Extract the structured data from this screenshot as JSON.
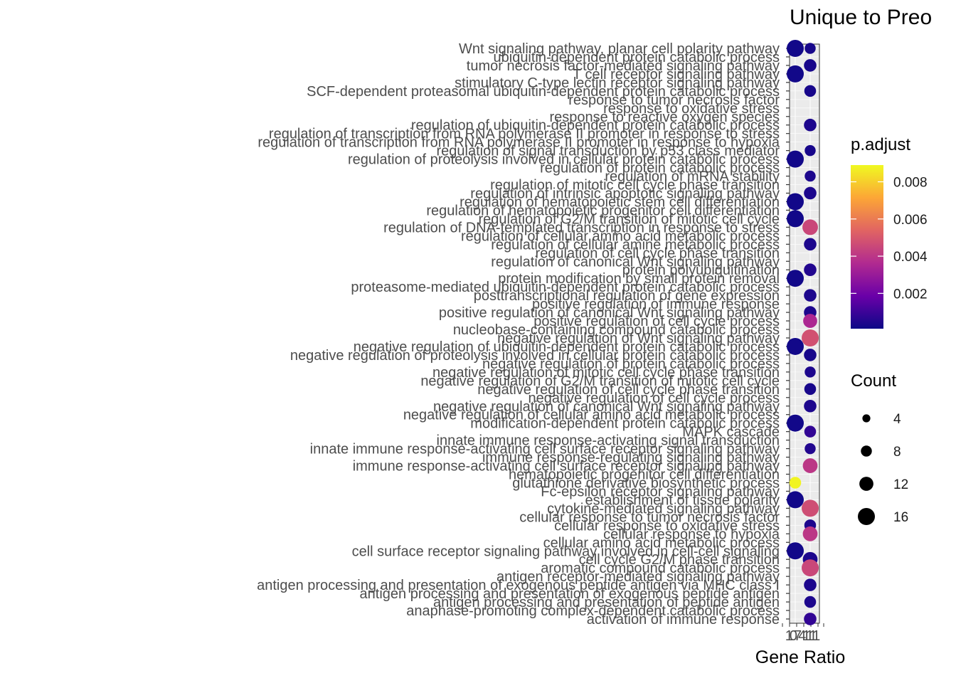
{
  "chart_data": {
    "type": "scatter",
    "title": "Unique to Preo",
    "xlabel": "Gene Ratio",
    "ylabel": "",
    "x_tick_labels": [
      "1",
      "0",
      "7",
      "4",
      "1",
      "1",
      "1"
    ],
    "x_tick_text": "10741111",
    "categories": [
      "Wnt signaling pathway, planar cell polarity pathway",
      "ubiquitin-dependent protein catabolic process",
      "tumor necrosis factor-mediated signaling pathway",
      "T cell receptor signaling pathway",
      "stimulatory C-type lectin receptor signaling pathway",
      "SCF-dependent proteasomal ubiquitin-dependent protein catabolic process",
      "response to tumor necrosis factor",
      "response to oxidative stress",
      "response to reactive oxygen species",
      "regulation of ubiquitin-dependent protein catabolic process",
      "regulation of transcription from RNA polymerase II promoter in response to stress",
      "regulation of transcription from RNA polymerase II promoter in response to hypoxia",
      "regulation of signal transduction by p53 class mediator",
      "regulation of proteolysis involved in cellular protein catabolic process",
      "regulation of protein catabolic process",
      "regulation of mRNA stability",
      "regulation of mitotic cell cycle phase transition",
      "regulation of intrinsic apoptotic signaling pathway",
      "regulation of hematopoietic stem cell differentiation",
      "regulation of hematopoietic progenitor cell differentiation",
      "regulation of G2/M transition of mitotic cell cycle",
      "regulation of DNA-templated transcription in response to stress",
      "regulation of cellular amino acid metabolic process",
      "regulation of cellular amine metabolic process",
      "regulation of cell cycle phase transition",
      "regulation of canonical Wnt signaling pathway",
      "protein polyubiquitination",
      "protein modification by small protein removal",
      "proteasome-mediated ubiquitin-dependent protein catabolic process",
      "posttranscriptional regulation of gene expression",
      "positive regulation of immune response",
      "positive regulation of canonical Wnt signaling pathway",
      "positive regulation of cell cycle process",
      "nucleobase-containing compound catabolic process",
      "negative regulation of Wnt signaling pathway",
      "negative regulation of ubiquitin-dependent protein catabolic process",
      "negative regulation of proteolysis involved in cellular protein catabolic process",
      "negative regulation of protein catabolic process",
      "negative regulation of mitotic cell cycle phase transition",
      "negative regulation of G2/M transition of mitotic cell cycle",
      "negative regulation of cell cycle phase transition",
      "negative regulation of cell cycle process",
      "negative regulation of canonical Wnt signaling pathway",
      "negative regulation of cellular amino acid metabolic process",
      "modification-dependent protein catabolic process",
      "MAPK cascade",
      "innate immune response-activating signal transduction",
      "innate immune response-activating cell surface receptor signaling pathway",
      "immune response-regulating signaling pathway",
      "immune response-activating cell surface receptor signaling pathway",
      "hematopoietic progenitor cell differentiation",
      "glutathione derivative biosynthetic process",
      "Fc-epsilon receptor signaling pathway",
      "establishment of tissue polarity",
      "cytokine-mediated signaling pathway",
      "cellular response to tumor necrosis factor",
      "cellular response to oxidative stress",
      "cellular response to hypoxia",
      "cellular amino acid metabolic process",
      "cell surface receptor signaling pathway involved in cell-cell signaling",
      "cell cycle G2/M phase transition",
      "aromatic compound catabolic process",
      "antigen receptor-mediated signaling pathway",
      "antigen processing and presentation of exogenous peptide antigen via MHC class I",
      "antigen processing and presentation of exogenous peptide antigen",
      "antigen processing and presentation of peptide antigen",
      "anaphase-promoting complex-dependent catabolic process",
      "activation of immune response"
    ],
    "points": [
      {
        "x": 1,
        "y": 0,
        "count": 16,
        "p_adjust": 0.0002
      },
      {
        "x": 2,
        "y": 0,
        "count": 8,
        "p_adjust": 0.0003
      },
      {
        "x": 2,
        "y": 2,
        "count": 10,
        "p_adjust": 0.0003
      },
      {
        "x": 1,
        "y": 3,
        "count": 16,
        "p_adjust": 0.0002
      },
      {
        "x": 2,
        "y": 5,
        "count": 9,
        "p_adjust": 0.0003
      },
      {
        "x": 2,
        "y": 9,
        "count": 10,
        "p_adjust": 0.0004
      },
      {
        "x": 2,
        "y": 12,
        "count": 8,
        "p_adjust": 0.0003
      },
      {
        "x": 1,
        "y": 13,
        "count": 16,
        "p_adjust": 0.0002
      },
      {
        "x": 2,
        "y": 15,
        "count": 8,
        "p_adjust": 0.0004
      },
      {
        "x": 2,
        "y": 17,
        "count": 10,
        "p_adjust": 0.0004
      },
      {
        "x": 1,
        "y": 18,
        "count": 16,
        "p_adjust": 0.0002
      },
      {
        "x": 1,
        "y": 20,
        "count": 16,
        "p_adjust": 0.0002
      },
      {
        "x": 2,
        "y": 21,
        "count": 14,
        "p_adjust": 0.0045
      },
      {
        "x": 2,
        "y": 23,
        "count": 10,
        "p_adjust": 0.0004
      },
      {
        "x": 2,
        "y": 26,
        "count": 10,
        "p_adjust": 0.0005
      },
      {
        "x": 1,
        "y": 27,
        "count": 16,
        "p_adjust": 0.0002
      },
      {
        "x": 2,
        "y": 29,
        "count": 10,
        "p_adjust": 0.0004
      },
      {
        "x": 2,
        "y": 31,
        "count": 10,
        "p_adjust": 0.0004
      },
      {
        "x": 2,
        "y": 32,
        "count": 12,
        "p_adjust": 0.0035
      },
      {
        "x": 2,
        "y": 34,
        "count": 16,
        "p_adjust": 0.0048
      },
      {
        "x": 1,
        "y": 35,
        "count": 16,
        "p_adjust": 0.0002
      },
      {
        "x": 2,
        "y": 36,
        "count": 10,
        "p_adjust": 0.0003
      },
      {
        "x": 2,
        "y": 38,
        "count": 8,
        "p_adjust": 0.0004
      },
      {
        "x": 2,
        "y": 40,
        "count": 9,
        "p_adjust": 0.0003
      },
      {
        "x": 2,
        "y": 42,
        "count": 10,
        "p_adjust": 0.0004
      },
      {
        "x": 1,
        "y": 44,
        "count": 16,
        "p_adjust": 0.0002
      },
      {
        "x": 2,
        "y": 45,
        "count": 9,
        "p_adjust": 0.0008
      },
      {
        "x": 2,
        "y": 47,
        "count": 8,
        "p_adjust": 0.0005
      },
      {
        "x": 2,
        "y": 49,
        "count": 13,
        "p_adjust": 0.004
      },
      {
        "x": 1,
        "y": 51,
        "count": 9,
        "p_adjust": 0.0088
      },
      {
        "x": 1,
        "y": 53,
        "count": 16,
        "p_adjust": 0.0002
      },
      {
        "x": 2,
        "y": 54,
        "count": 16,
        "p_adjust": 0.0047
      },
      {
        "x": 2,
        "y": 56,
        "count": 9,
        "p_adjust": 0.0004
      },
      {
        "x": 2,
        "y": 57,
        "count": 13,
        "p_adjust": 0.004
      },
      {
        "x": 1,
        "y": 59,
        "count": 16,
        "p_adjust": 0.0002
      },
      {
        "x": 2,
        "y": 60,
        "count": 13,
        "p_adjust": 0.0004
      },
      {
        "x": 2,
        "y": 61,
        "count": 16,
        "p_adjust": 0.0045
      },
      {
        "x": 2,
        "y": 63,
        "count": 10,
        "p_adjust": 0.0004
      },
      {
        "x": 2,
        "y": 65,
        "count": 9,
        "p_adjust": 0.0004
      },
      {
        "x": 2,
        "y": 67,
        "count": 10,
        "p_adjust": 0.0008
      }
    ],
    "legend_color": {
      "title": "p.adjust",
      "ticks": [
        0.002,
        0.004,
        0.006,
        0.008
      ],
      "tick_labels": [
        "0.002",
        "0.004",
        "0.006",
        "0.008"
      ],
      "range": [
        0.0001,
        0.0089
      ],
      "colors": [
        "#0d0887",
        "#6a00a8",
        "#b12a90",
        "#e16462",
        "#fca636",
        "#f0f921"
      ]
    },
    "legend_size": {
      "title": "Count",
      "values": [
        4,
        8,
        12,
        16
      ],
      "labels": [
        "4",
        "8",
        "12",
        "16"
      ]
    },
    "grid": true,
    "legend_position": "right"
  }
}
